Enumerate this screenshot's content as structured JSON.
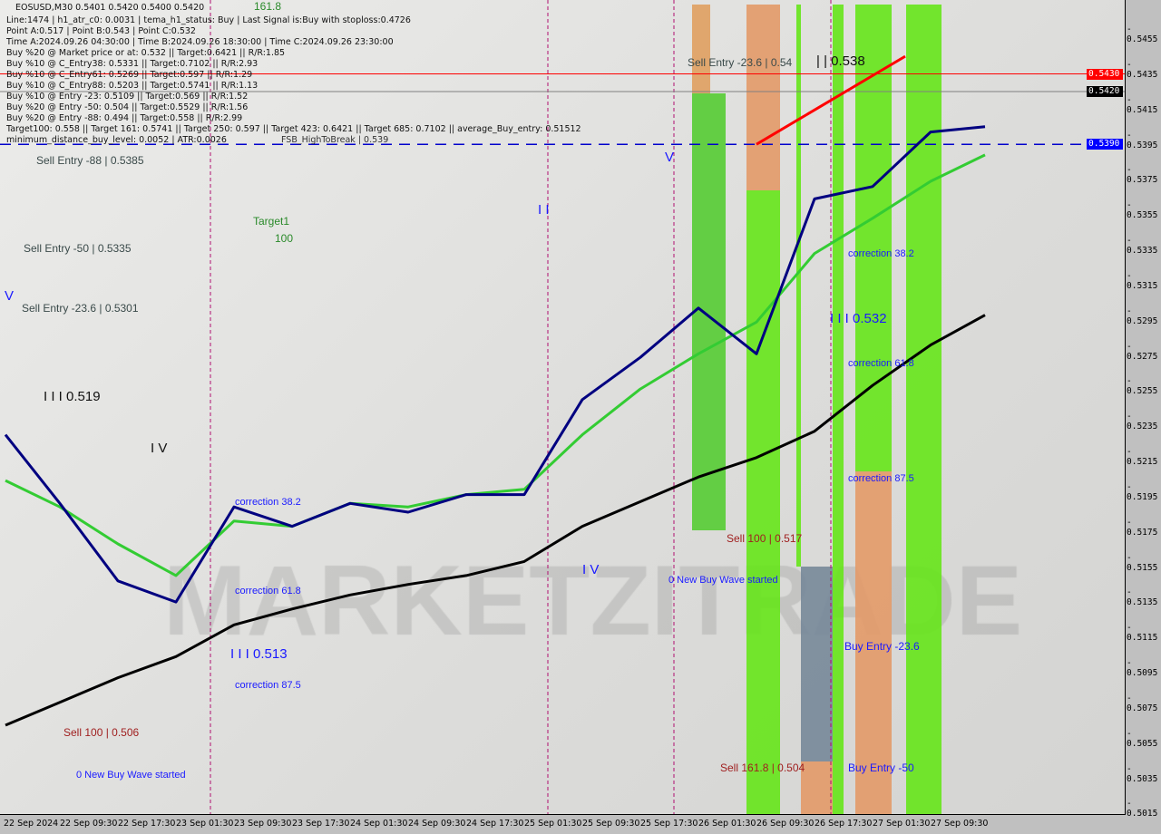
{
  "header": {
    "symbol_line": "EOSUSD,M30  0.5401 0.5420 0.5400 0.5420",
    "info_lines": [
      "Line:1474 | h1_atr_c0: 0.0031 | tema_h1_status: Buy | Last Signal is:Buy with stoploss:0.4726",
      "Point A:0.517 | Point B:0.543 | Point C:0.532",
      "Time A:2024.09.26 04:30:00 | Time B:2024.09.26 18:30:00 | Time C:2024.09.26 23:30:00",
      "Buy %20 @ Market price or at: 0.532 || Target:0.6421 || R/R:1.85",
      "Buy %10 @ C_Entry38: 0.5331 || Target:0.7102 || R/R:2.93",
      "Buy %10 @ C_Entry61: 0.5269 || Target:0.597 || R/R:1.29",
      "Buy %10 @ C_Entry88: 0.5203 || Target:0.5741 || R/R:1.13",
      "Buy %10 @ Entry -23: 0.5109 || Target:0.569 || R/R:1.52",
      "Buy %20 @ Entry -50: 0.504 || Target:0.5529 || R/R:1.56",
      "Buy %20 @ Entry -88: 0.494 || Target:0.558 || R/R:2.99",
      "Target100: 0.558 || Target 161: 0.5741 || Target 250: 0.597 || Target 423: 0.6421 || Target 685: 0.7102 || average_Buy_entry: 0.51512",
      "minimum_distance_buy_level: 0.0052 | ATR:0.0026"
    ],
    "fsb_label": "FSB_HighToBreak | 0.539"
  },
  "labels": {
    "fib_1618_top": "161.8",
    "sell_entry_88": "Sell Entry -88 | 0.5385",
    "target1": "Target1",
    "target1_value": "100",
    "sell_entry_50": "Sell Entry -50 | 0.5335",
    "sell_entry_236_left": "Sell Entry -23.6 | 0.5301",
    "wave_v_left": "V",
    "wave_iii_0519": "I I I 0.519",
    "wave_iv_left": "I V",
    "correction_382_left": "correction 38.2",
    "correction_618_left": "correction 61.8",
    "wave_iii_0513": "I I I 0.513",
    "correction_875_left": "correction 87.5",
    "sell_100_0506": "Sell 100 | 0.506",
    "new_buy_wave_left": "0 New Buy Wave started",
    "wave_ii_mid": "I I",
    "wave_v_mid": "V",
    "wave_iv_mid": "I V",
    "sell_entry_236_right": "Sell Entry -23.6 | 0.54",
    "wave_ii_0538": "| | 0.538",
    "correction_382_right": "correction 38.2",
    "wave_iii_0532": "I I I 0.532",
    "correction_618_right": "correction 61.8",
    "correction_875_right": "correction 87.5",
    "sell_100_0517": "Sell 100 | 0.517",
    "new_buy_wave_right": "0 New Buy Wave started",
    "buy_entry_236": "Buy Entry -23.6",
    "sell_1618_0504": "Sell 161.8 | 0.504",
    "buy_entry_50": "Buy Entry -50"
  },
  "watermark": "MARKETZITRADE",
  "price_axis": {
    "ticks": [
      "0.5455",
      "0.5435",
      "0.5415",
      "0.5395",
      "0.5375",
      "0.5355",
      "0.5335",
      "0.5315",
      "0.5295",
      "0.5275",
      "0.5255",
      "0.5235",
      "0.5215",
      "0.5195",
      "0.5175",
      "0.5155",
      "0.5135",
      "0.5115",
      "0.5095",
      "0.5075",
      "0.5055",
      "0.5035",
      "0.5015"
    ],
    "tags": [
      {
        "value": "0.5430",
        "color": "#ff0000"
      },
      {
        "value": "0.5420",
        "color": "#000000"
      },
      {
        "value": "0.5390",
        "color": "#0000ff"
      }
    ]
  },
  "time_axis": {
    "ticks": [
      "22 Sep 2024",
      "22 Sep 09:30",
      "22 Sep 17:30",
      "23 Sep 01:30",
      "23 Sep 09:30",
      "23 Sep 17:30",
      "24 Sep 01:30",
      "24 Sep 09:30",
      "24 Sep 17:30",
      "25 Sep 01:30",
      "25 Sep 09:30",
      "25 Sep 17:30",
      "26 Sep 01:30",
      "26 Sep 09:30",
      "26 Sep 17:30",
      "27 Sep 01:30",
      "27 Sep 09:30"
    ]
  },
  "chart_data": {
    "type": "line",
    "symbol": "EOSUSD",
    "timeframe": "M30",
    "ylim": [
      0.5005,
      0.5465
    ],
    "grid": false,
    "x": [
      "2024-09-22 02:00",
      "2024-09-22 09:30",
      "2024-09-22 17:30",
      "2024-09-23 01:30",
      "2024-09-23 09:30",
      "2024-09-23 17:30",
      "2024-09-24 01:30",
      "2024-09-24 09:30",
      "2024-09-24 17:30",
      "2024-09-25 01:30",
      "2024-09-25 09:30",
      "2024-09-25 17:30",
      "2024-09-26 01:30",
      "2024-09-26 09:30",
      "2024-09-26 17:30",
      "2024-09-27 01:30",
      "2024-09-27 09:30",
      "2024-09-27 17:00"
    ],
    "series": [
      {
        "color": "#000000",
        "values": [
          0.506,
          0.5073,
          0.5087,
          0.5099,
          0.5117,
          0.5126,
          0.5134,
          0.514,
          0.5145,
          0.5153,
          0.5173,
          0.5187,
          0.5201,
          0.5212,
          0.5227,
          0.5253,
          0.5276,
          0.5293
        ]
      },
      {
        "color": "#33cc33",
        "values": [
          0.5199,
          0.5184,
          0.5163,
          0.5145,
          0.5176,
          0.5173,
          0.5186,
          0.5184,
          0.5191,
          0.5194,
          0.5225,
          0.5251,
          0.5271,
          0.5289,
          0.5328,
          0.5348,
          0.5369,
          0.5384
        ]
      },
      {
        "color": "#000080",
        "values": [
          0.5225,
          0.5186,
          0.5142,
          0.513,
          0.5184,
          0.5173,
          0.5186,
          0.5181,
          0.5191,
          0.5191,
          0.5245,
          0.5269,
          0.5297,
          0.5271,
          0.5359,
          0.5366,
          0.5397,
          0.54
        ]
      }
    ],
    "hlines": [
      {
        "price": 0.543,
        "color": "#ff0000",
        "style": "solid"
      },
      {
        "price": 0.542,
        "color": "#808080",
        "style": "solid"
      },
      {
        "price": 0.539,
        "color": "#0000cc",
        "style": "dashed"
      }
    ],
    "trendline": {
      "color": "#ff0000",
      "from": [
        "2024-09-26 09:30",
        0.539
      ],
      "to": [
        "2024-09-27 06:00",
        0.544
      ]
    },
    "last_close": 0.542
  }
}
